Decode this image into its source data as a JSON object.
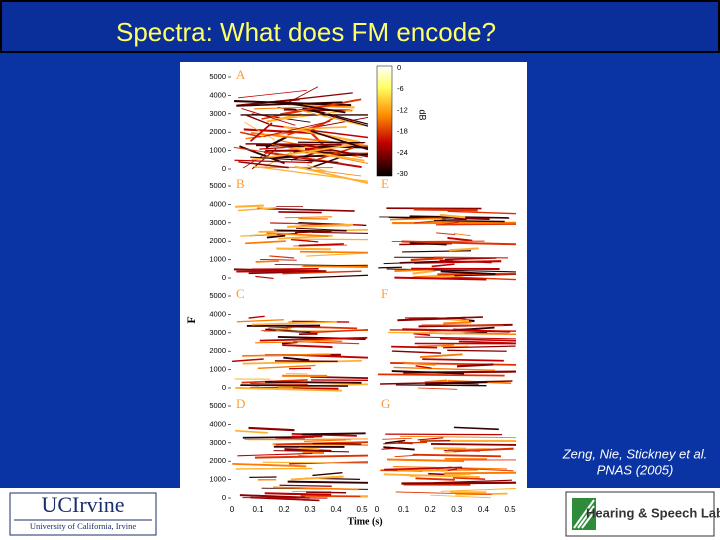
{
  "title": "Spectra: What does FM encode?",
  "citation": [
    "Zeng, Nie, Stickney et al.",
    "PNAS (2005)"
  ],
  "figure": {
    "panel_labels": [
      "A",
      "B",
      "C",
      "D",
      "E",
      "F",
      "G"
    ],
    "y_ticks": [
      "5000",
      "4000",
      "3000",
      "2000",
      "1000",
      "0"
    ],
    "x_ticks": [
      "0",
      "0.1",
      "0.2",
      "0.3",
      "0.4",
      "0.5"
    ],
    "x_label": "Time (s)",
    "y_label": "F",
    "colorbar": {
      "ticks": [
        "0",
        "-6",
        "-12",
        "-18",
        "-24",
        "-30"
      ],
      "label": "dB"
    }
  },
  "logos": {
    "left_name": "UCIrvine",
    "left_subtitle": "University of California, Irvine",
    "right_name": "Hearing & Speech Lab"
  }
}
